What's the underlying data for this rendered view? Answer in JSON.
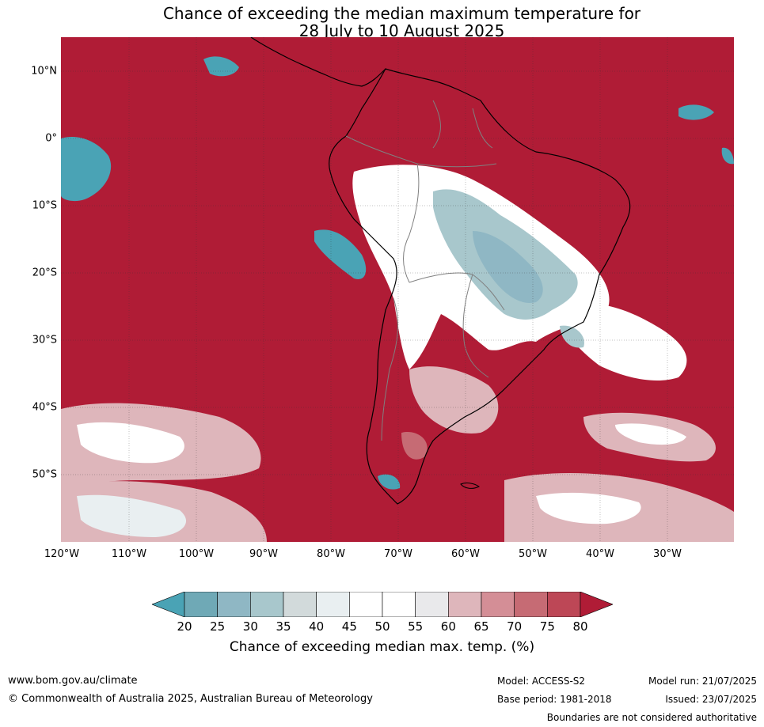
{
  "title": {
    "line1": "Chance of exceeding the median maximum temperature for",
    "line2": "28 July to 10 August 2025"
  },
  "map": {
    "region": "South America",
    "lat_labels": [
      "10°N",
      "0°",
      "10°S",
      "20°S",
      "30°S",
      "40°S",
      "50°S"
    ],
    "lon_labels": [
      "120°W",
      "110°W",
      "100°W",
      "90°W",
      "80°W",
      "70°W",
      "60°W",
      "50°W",
      "40°W",
      "30°W"
    ],
    "colors": {
      "ocean_hot": "#b01c36",
      "below_20": "#4aa3b5",
      "neutral": "#ffffff",
      "coastline": "#000000",
      "borders": "#808080",
      "grid": "#333333"
    }
  },
  "legend": {
    "ticks": [
      "20",
      "25",
      "30",
      "35",
      "40",
      "45",
      "50",
      "55",
      "60",
      "65",
      "70",
      "75",
      "80"
    ],
    "bin_colors": [
      "#6fa9b6",
      "#8fb7c4",
      "#a8c7cc",
      "#d2dadb",
      "#e9eff1",
      "#ffffff",
      "#ffffff",
      "#e9e9eb",
      "#deb6bb",
      "#d48e96",
      "#c66b74",
      "#bd4756"
    ],
    "under_color": "#4aa3b5",
    "over_color": "#b01c36",
    "label": "Chance of exceeding median max. temp. (%)"
  },
  "footer": {
    "website": "www.bom.gov.au/climate",
    "copyright": "© Commonwealth of Australia 2025, Australian Bureau of Meteorology",
    "model": "Model: ACCESS-S2",
    "base_period": "Base period: 1981-2018",
    "model_run": "Model run: 21/07/2025",
    "issued": "Issued: 23/07/2025",
    "disclaimer": "Boundaries are not considered authoritative"
  }
}
